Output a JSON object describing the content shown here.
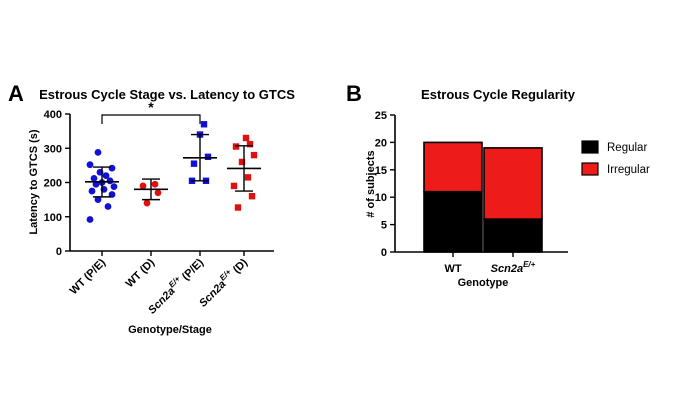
{
  "colors": {
    "wt": "#1010d8",
    "mutant": "#e01010",
    "regular": "#000000",
    "irregular": "#ee1b1b"
  },
  "chart_data": [
    {
      "panel": "A",
      "type": "scatter",
      "title": "Estrous Cycle Stage vs. Latency to GTCS",
      "xlabel": "Genotype/Stage",
      "ylabel": "Latency to GTCS (s)",
      "ylim": [
        0,
        400
      ],
      "yticks": [
        "0",
        "100",
        "200",
        "300",
        "400"
      ],
      "significance": "*",
      "groups": [
        {
          "label_main": "WT (P/E)",
          "label_sup": "",
          "label_tail": "",
          "marker": "circle",
          "color": "#1010d8",
          "mean": 202,
          "sd_low": 158,
          "sd_high": 245,
          "values": [
            92,
            130,
            150,
            165,
            175,
            180,
            188,
            195,
            200,
            205,
            212,
            220,
            230,
            242,
            252,
            288
          ]
        },
        {
          "label_main": "WT (D)",
          "label_sup": "",
          "label_tail": "",
          "marker": "circle",
          "color": "#e01010",
          "mean": 180,
          "sd_low": 150,
          "sd_high": 210,
          "values": [
            140,
            170,
            190,
            195
          ]
        },
        {
          "label_main": "Scn2a",
          "label_sup": "E/+",
          "label_tail": " (P/E)",
          "marker": "square",
          "color": "#1010d8",
          "mean": 272,
          "sd_low": 205,
          "sd_high": 340,
          "values": [
            205,
            205,
            255,
            275,
            340,
            370
          ]
        },
        {
          "label_main": "Scn2a",
          "label_sup": "E/+",
          "label_tail": " (D)",
          "marker": "square",
          "color": "#e01010",
          "mean": 241,
          "sd_low": 175,
          "sd_high": 307,
          "values": [
            127,
            160,
            190,
            215,
            260,
            280,
            305,
            312,
            330
          ]
        }
      ]
    },
    {
      "panel": "B",
      "type": "bar",
      "stacked": true,
      "title": "Estrous Cycle Regularity",
      "xlabel": "Genotype",
      "ylabel": "# of subjects",
      "ylim": [
        0,
        25
      ],
      "yticks": [
        "0",
        "5",
        "10",
        "15",
        "20",
        "25"
      ],
      "categories": [
        {
          "main": "WT",
          "sup": ""
        },
        {
          "main": "Scn2a",
          "sup": "E/+"
        }
      ],
      "series": [
        {
          "name": "Regular",
          "color": "#000000",
          "values": [
            11,
            6
          ]
        },
        {
          "name": "Irregular",
          "color": "#ee1b1b",
          "values": [
            9,
            13
          ]
        }
      ]
    }
  ]
}
